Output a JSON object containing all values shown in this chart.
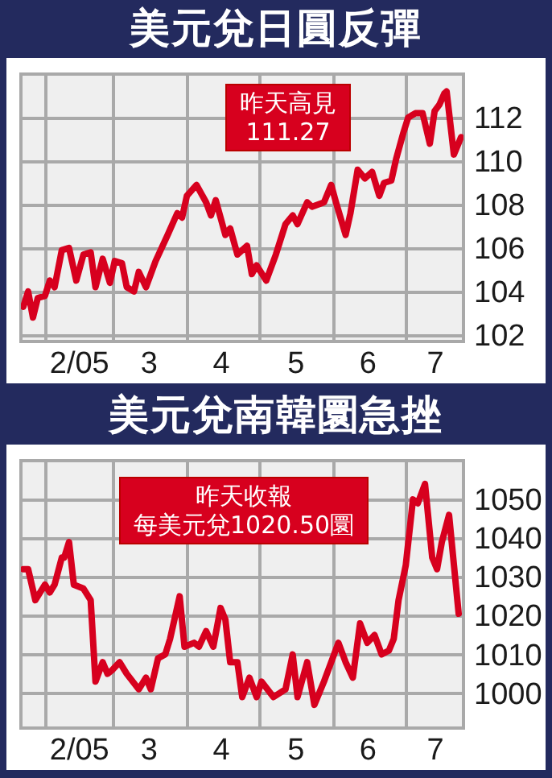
{
  "chart_data": [
    {
      "type": "line",
      "title": "美元兌日圓反彈",
      "x": [
        "--01-23",
        "--01-25",
        "--01-27",
        "--01-29",
        "--02-01",
        "--02-03",
        "--02-05",
        "--02-08",
        "--02-11",
        "--02-14",
        "--02-17",
        "--02-20",
        "--02-22",
        "--02-25",
        "--02-28",
        "--03-02",
        "--03-05",
        "--03-07",
        "--03-10",
        "--03-12",
        "--03-15",
        "--03-19",
        "--03-24",
        "--03-28",
        "--03-30",
        "--04-01",
        "--04-05",
        "--04-09",
        "--04-11",
        "--04-13",
        "--04-17",
        "--04-19",
        "--04-22",
        "--04-26",
        "--04-28",
        "--04-30",
        "--05-04",
        "--05-08",
        "--05-12",
        "--05-15",
        "--05-17",
        "--05-21",
        "--05-23",
        "--05-28",
        "--05-31",
        "--06-02",
        "--06-06",
        "--06-08",
        "--06-11",
        "--06-14",
        "--06-17",
        "--06-20",
        "--06-22",
        "--06-25",
        "--06-27",
        "--06-30",
        "--07-02",
        "--07-05",
        "--07-08",
        "--07-11",
        "--07-13",
        "--07-15",
        "--07-17",
        "--07-18",
        "--07-21",
        "--07-24"
      ],
      "series": [
        {
          "color": "#d7001e",
          "values": [
            103.3,
            104.0,
            102.8,
            103.7,
            103.8,
            104.5,
            104.2,
            105.9,
            106.0,
            104.5,
            105.7,
            105.8,
            104.2,
            105.5,
            104.4,
            105.4,
            105.3,
            104.2,
            104.0,
            104.9,
            104.2,
            105.4,
            106.6,
            107.6,
            107.4,
            108.4,
            108.9,
            108.1,
            107.5,
            108.2,
            106.6,
            106.9,
            105.7,
            106.1,
            104.8,
            105.2,
            104.5,
            105.7,
            107.1,
            107.5,
            107.1,
            108.1,
            107.9,
            108.1,
            108.9,
            108.1,
            106.6,
            107.6,
            109.6,
            109.2,
            109.5,
            108.4,
            109.0,
            109.1,
            110.1,
            111.3,
            112.0,
            112.2,
            112.2,
            110.8,
            112.3,
            112.6,
            113.1,
            113.2,
            110.3,
            111.1
          ]
        }
      ],
      "xlim": [
        "--01-22",
        "--07-25"
      ],
      "xticks": [
        {
          "value": "--02-01",
          "label": null
        },
        {
          "value": "--03-01",
          "label": null
        },
        {
          "value": "--04-01",
          "label": null
        },
        {
          "value": "--05-01",
          "label": null
        },
        {
          "value": "--06-01",
          "label": null
        },
        {
          "value": "--07-01",
          "label": null
        },
        {
          "value": "--02-15",
          "label": "2/05"
        },
        {
          "value": "--03-16",
          "label": "3"
        },
        {
          "value": "--04-15",
          "label": "4"
        },
        {
          "value": "--05-16",
          "label": "5"
        },
        {
          "value": "--06-15",
          "label": "6"
        },
        {
          "value": "--07-13",
          "label": "7"
        }
      ],
      "ylim": [
        101.7,
        114
      ],
      "yticks": [
        102,
        104,
        106,
        108,
        110,
        112
      ],
      "grid": true,
      "marker": "none",
      "annotations": [
        "昨天高見",
        "111.27"
      ]
    },
    {
      "type": "line",
      "title": "美元兌南韓圜急挫",
      "x": [
        "--01-23",
        "--01-25",
        "--01-28",
        "--02-01",
        "--02-03",
        "--02-05",
        "--02-08",
        "--02-09",
        "--02-11",
        "--02-13",
        "--02-17",
        "--02-20",
        "--02-22",
        "--02-25",
        "--02-27",
        "--03-01",
        "--03-04",
        "--03-07",
        "--03-12",
        "--03-15",
        "--03-17",
        "--03-20",
        "--03-23",
        "--03-25",
        "--03-29",
        "--03-31",
        "--04-04",
        "--04-06",
        "--04-09",
        "--04-12",
        "--04-15",
        "--04-17",
        "--04-19",
        "--04-22",
        "--04-24",
        "--04-27",
        "--04-30",
        "--05-02",
        "--05-07",
        "--05-12",
        "--05-15",
        "--05-17",
        "--05-21",
        "--05-24",
        "--05-28",
        "--05-31",
        "--06-03",
        "--06-06",
        "--06-09",
        "--06-12",
        "--06-15",
        "--06-18",
        "--06-21",
        "--06-24",
        "--06-26",
        "--06-28",
        "--07-01",
        "--07-04",
        "--07-06",
        "--07-09",
        "--07-12",
        "--07-14",
        "--07-16",
        "--07-19",
        "--07-23"
      ],
      "series": [
        {
          "color": "#d7001e",
          "values": [
            1032,
            1032,
            1024,
            1028,
            1026,
            1028,
            1035,
            1035,
            1039,
            1028,
            1027,
            1024,
            1003,
            1008,
            1005,
            1006,
            1008,
            1005,
            1001,
            1004,
            1001,
            1009,
            1010,
            1014,
            1025,
            1012,
            1013,
            1012,
            1016,
            1012,
            1022,
            1019,
            1008,
            1008,
            999,
            1004,
            999,
            1003,
            999,
            1001,
            1010,
            999,
            1008,
            997,
            1003,
            1008,
            1013,
            1008,
            1004,
            1018,
            1013,
            1015,
            1010,
            1011,
            1014,
            1024,
            1033,
            1050,
            1049,
            1054,
            1035,
            1032,
            1039,
            1046,
            1020.5
          ]
        }
      ],
      "xlim": [
        "--01-22",
        "--07-25"
      ],
      "xticks": [
        {
          "value": "--02-01",
          "label": null
        },
        {
          "value": "--03-01",
          "label": null
        },
        {
          "value": "--04-01",
          "label": null
        },
        {
          "value": "--05-01",
          "label": null
        },
        {
          "value": "--06-01",
          "label": null
        },
        {
          "value": "--07-01",
          "label": null
        },
        {
          "value": "--02-15",
          "label": "2/05"
        },
        {
          "value": "--03-16",
          "label": "3"
        },
        {
          "value": "--04-15",
          "label": "4"
        },
        {
          "value": "--05-16",
          "label": "5"
        },
        {
          "value": "--06-15",
          "label": "6"
        },
        {
          "value": "--07-13",
          "label": "7"
        }
      ],
      "ylim": [
        991,
        1060
      ],
      "yticks": [
        1000,
        1010,
        1020,
        1030,
        1040,
        1050
      ],
      "grid": true,
      "marker": "none",
      "annotations": [
        "昨天收報",
        "每美元兌1020.50圜"
      ]
    }
  ]
}
